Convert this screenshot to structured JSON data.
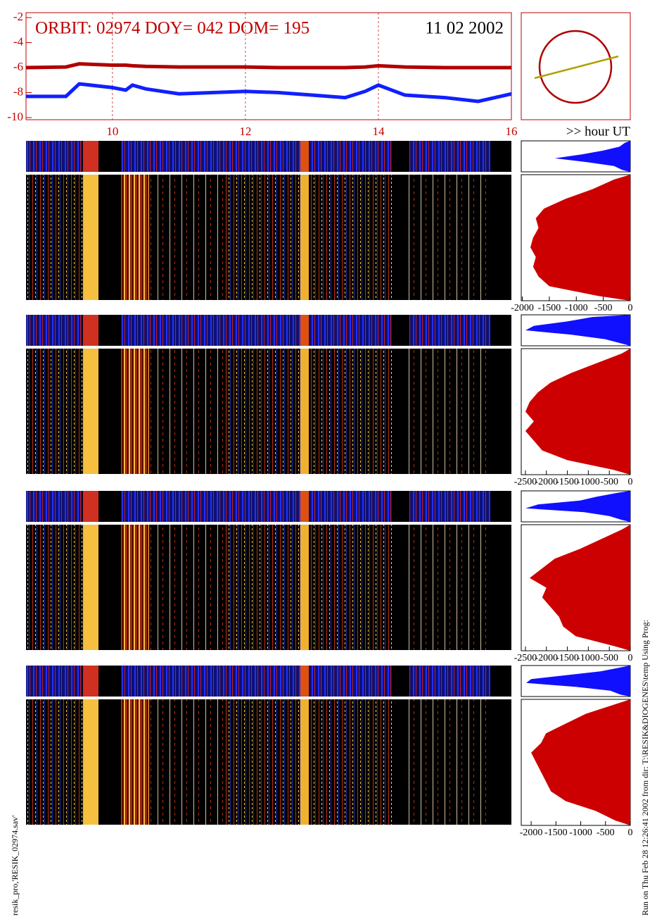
{
  "chart_data": [
    {
      "type": "line",
      "title": "ORBIT: 02974 DOY=  042 DOM=  195",
      "subtitle": "11 02 2002",
      "xlabel": ">> hour UT",
      "x": [
        8.7,
        9.3,
        9.5,
        10.0,
        10.2,
        10.3,
        10.5,
        11,
        11.5,
        12,
        12.5,
        13,
        13.5,
        13.8,
        14,
        14.4,
        15,
        15.5,
        16
      ],
      "series": [
        {
          "color": "#b00000",
          "values": [
            -6.0,
            -5.95,
            -5.7,
            -5.8,
            -5.8,
            -5.85,
            -5.9,
            -5.95,
            -5.95,
            -5.95,
            -6.0,
            -6.0,
            -6.0,
            -5.95,
            -5.85,
            -5.95,
            -6.0,
            -6.0,
            -6.0
          ]
        },
        {
          "color": "#1020ff",
          "values": [
            -8.3,
            -8.3,
            -7.3,
            -7.6,
            -7.8,
            -7.4,
            -7.7,
            -8.1,
            -8.0,
            -7.9,
            -8.0,
            -8.2,
            -8.4,
            -7.9,
            -7.4,
            -8.2,
            -8.4,
            -8.7,
            -8.1
          ]
        }
      ],
      "xlim": [
        8.7,
        16
      ],
      "xticks": [
        10,
        12,
        14,
        16
      ],
      "ylim": [
        -2,
        -10
      ],
      "yticks": [
        -2,
        -4,
        -6,
        -8,
        -10
      ]
    },
    {
      "type": "area",
      "xlim": [
        -2020,
        0
      ],
      "xticks": [
        -2000,
        -1500,
        -1000,
        -500,
        0
      ],
      "series": [
        {
          "color": "#1010ff",
          "values": [
            -100,
            -200,
            -500,
            -900,
            -1400,
            -800,
            -300,
            -150
          ]
        },
        {
          "color": "#cc0000",
          "values": [
            -300,
            -700,
            -1200,
            -1600,
            -1750,
            -1700,
            -1800,
            -1850,
            -1750,
            -1800,
            -1700,
            -1500,
            -600
          ]
        }
      ]
    },
    {
      "type": "area",
      "xlim": [
        -2600,
        0
      ],
      "xticks": [
        -2500,
        -2000,
        -1500,
        -1000,
        -500,
        0
      ],
      "series": [
        {
          "color": "#1010ff",
          "values": [
            -900,
            -1500,
            -2300,
            -2500,
            -1400,
            -600,
            -200
          ]
        },
        {
          "color": "#cc0000",
          "values": [
            -200,
            -800,
            -1400,
            -1900,
            -2200,
            -2400,
            -2500,
            -2300,
            -2500,
            -2300,
            -2100,
            -1500,
            -400
          ]
        }
      ]
    },
    {
      "type": "area",
      "xlim": [
        -2600,
        0
      ],
      "xticks": [
        -2500,
        -2000,
        -1500,
        -1000,
        -500,
        0
      ],
      "series": [
        {
          "color": "#1010ff",
          "values": [
            -300,
            -800,
            -1200,
            -2200,
            -2500,
            -1100,
            -500,
            -200
          ]
        },
        {
          "color": "#cc0000",
          "values": [
            -200,
            -700,
            -1200,
            -1800,
            -2100,
            -2400,
            -2000,
            -2100,
            -1900,
            -1700,
            -1600,
            -1300,
            -400
          ]
        }
      ]
    },
    {
      "type": "area",
      "xlim": [
        -2200,
        0
      ],
      "xticks": [
        -2000,
        -1500,
        -1000,
        -500,
        0
      ],
      "series": [
        {
          "color": "#1010ff",
          "values": [
            -200,
            -600,
            -1300,
            -2000,
            -2100,
            -1100,
            -400,
            -200
          ]
        },
        {
          "color": "#cc0000",
          "values": [
            -300,
            -900,
            -1300,
            -1700,
            -1800,
            -2000,
            -1900,
            -1800,
            -1700,
            -1600,
            -1300,
            -700,
            -300
          ]
        }
      ]
    }
  ],
  "footer_left": "resik_pro,'RESIK_02974.sav'",
  "footer_right": "Run on Thu Feb 28 12:26:41 2002  from dir: T:\\RESIK&DIOGENES\\temp Using Prog:"
}
